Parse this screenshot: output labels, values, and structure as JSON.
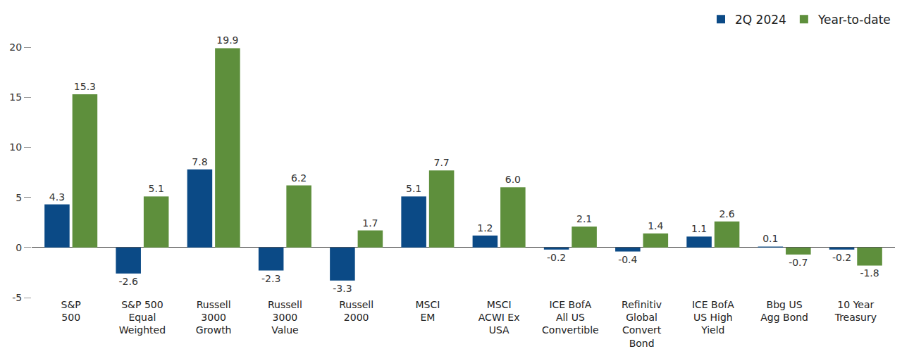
{
  "chart_data": {
    "type": "bar",
    "categories": [
      "S&P\n500",
      "S&P 500\nEqual\nWeighted",
      "Russell\n3000\nGrowth",
      "Russell\n3000\nValue",
      "Russell\n2000",
      "MSCI\nEM",
      "MSCI\nACWI Ex\nUSA",
      "ICE BofA\nAll US\nConvertible",
      "Refinitiv\nGlobal\nConvert\nBond",
      "ICE BofA\nUS High\nYield",
      "Bbg US\nAgg Bond",
      "10 Year\nTreasury"
    ],
    "series": [
      {
        "name": "2Q 2024",
        "color": "#0b4a86",
        "values": [
          4.3,
          -2.6,
          7.8,
          -2.3,
          -3.3,
          5.1,
          1.2,
          -0.2,
          -0.4,
          1.1,
          0.1,
          -0.2
        ],
        "value_labels": [
          "4.3",
          "-2.6",
          "7.8",
          "-2.3",
          "-3.3",
          "5.1",
          "1.2",
          "-0.2",
          "-0.4",
          "1.1",
          "0.1",
          "-0.2"
        ]
      },
      {
        "name": "Year-to-date",
        "color": "#5e8f3c",
        "values": [
          15.3,
          5.1,
          19.9,
          6.2,
          1.7,
          7.7,
          6.0,
          2.1,
          1.4,
          2.6,
          -0.7,
          -1.8
        ],
        "value_labels": [
          "15.3",
          "5.1",
          "19.9",
          "6.2",
          "1.7",
          "7.7",
          "6.0",
          "2.1",
          "1.4",
          "2.6",
          "-0.7",
          "-1.8"
        ]
      }
    ],
    "ylim": [
      -5,
      20
    ],
    "yticks": [
      -5,
      0,
      5,
      10,
      15,
      20
    ],
    "grid": false,
    "legend": "top-right",
    "data_labels": true
  }
}
